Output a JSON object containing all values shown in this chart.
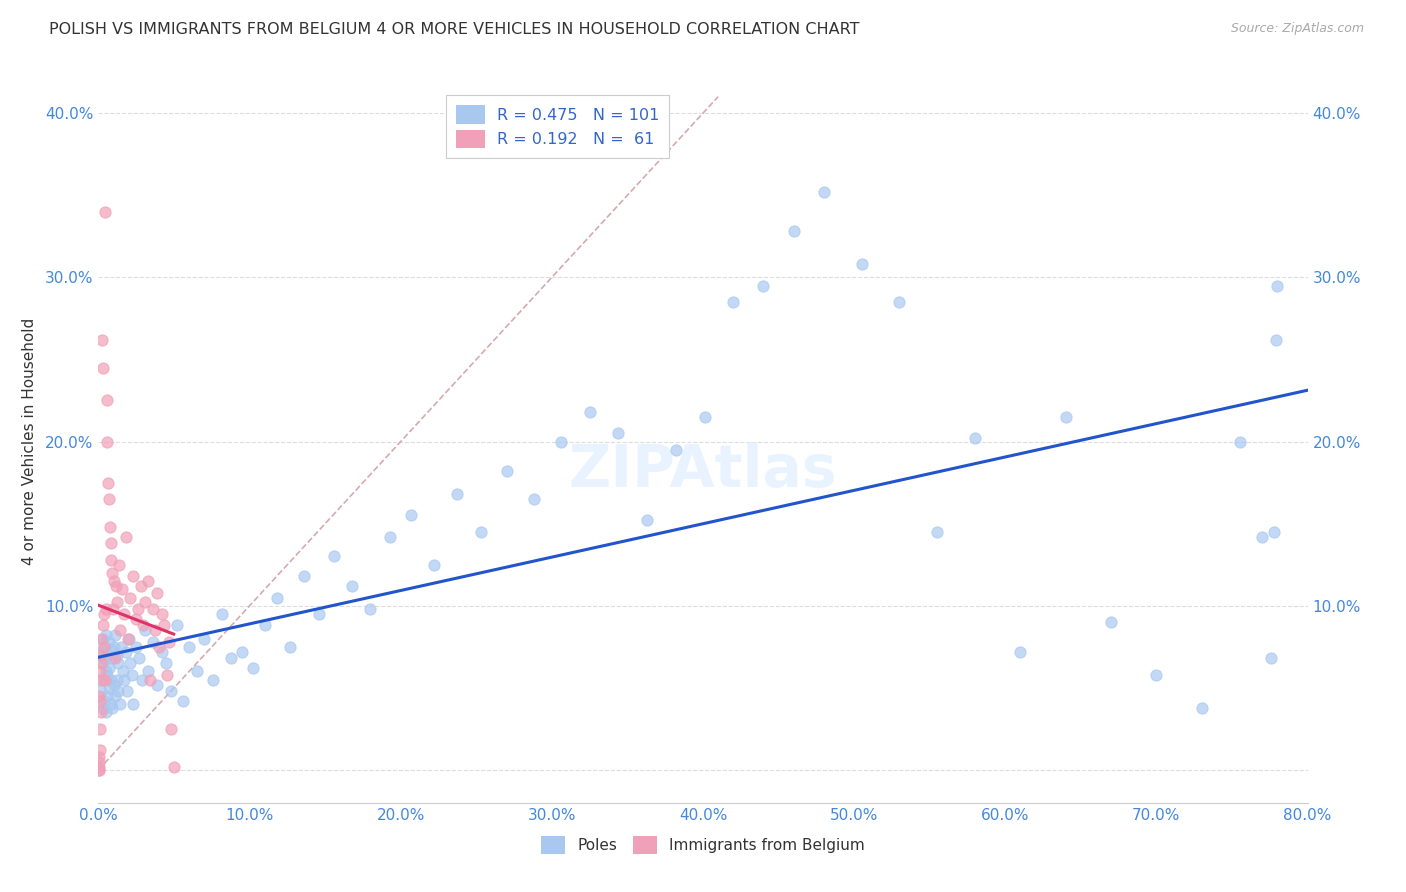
{
  "title": "POLISH VS IMMIGRANTS FROM BELGIUM 4 OR MORE VEHICLES IN HOUSEHOLD CORRELATION CHART",
  "source": "Source: ZipAtlas.com",
  "ylabel": "4 or more Vehicles in Household",
  "xlim": [
    0.0,
    0.8
  ],
  "ylim": [
    -0.02,
    0.42
  ],
  "xticks": [
    0.0,
    0.1,
    0.2,
    0.3,
    0.4,
    0.5,
    0.6,
    0.7,
    0.8
  ],
  "yticks": [
    0.0,
    0.1,
    0.2,
    0.3,
    0.4
  ],
  "ytick_labels": [
    "",
    "10.0%",
    "20.0%",
    "30.0%",
    "40.0%"
  ],
  "xtick_labels": [
    "0.0%",
    "10.0%",
    "20.0%",
    "30.0%",
    "40.0%",
    "50.0%",
    "60.0%",
    "70.0%",
    "80.0%"
  ],
  "poles_color": "#a8c8f0",
  "belgium_color": "#f0a0b8",
  "regression_poles_color": "#2255cc",
  "regression_belgium_color": "#dd3366",
  "diagonal_color": "#d0a0a8",
  "R_poles": 0.475,
  "N_poles": 101,
  "R_belgium": 0.192,
  "N_belgium": 61,
  "legend_poles": "Poles",
  "legend_belgium": "Immigrants from Belgium",
  "poles_x": [
    0.001,
    0.002,
    0.002,
    0.003,
    0.003,
    0.003,
    0.004,
    0.004,
    0.004,
    0.005,
    0.005,
    0.005,
    0.006,
    0.006,
    0.006,
    0.007,
    0.007,
    0.007,
    0.008,
    0.008,
    0.008,
    0.009,
    0.009,
    0.01,
    0.01,
    0.011,
    0.011,
    0.012,
    0.012,
    0.013,
    0.013,
    0.014,
    0.015,
    0.016,
    0.017,
    0.018,
    0.019,
    0.02,
    0.021,
    0.022,
    0.023,
    0.025,
    0.027,
    0.029,
    0.031,
    0.033,
    0.036,
    0.039,
    0.042,
    0.045,
    0.048,
    0.052,
    0.056,
    0.06,
    0.065,
    0.07,
    0.076,
    0.082,
    0.088,
    0.095,
    0.102,
    0.11,
    0.118,
    0.127,
    0.136,
    0.146,
    0.156,
    0.168,
    0.18,
    0.193,
    0.207,
    0.222,
    0.237,
    0.253,
    0.27,
    0.288,
    0.306,
    0.325,
    0.344,
    0.363,
    0.382,
    0.401,
    0.42,
    0.44,
    0.46,
    0.48,
    0.505,
    0.53,
    0.555,
    0.58,
    0.61,
    0.64,
    0.67,
    0.7,
    0.73,
    0.755,
    0.77,
    0.776,
    0.778,
    0.779,
    0.78
  ],
  "poles_y": [
    0.055,
    0.048,
    0.072,
    0.038,
    0.065,
    0.08,
    0.042,
    0.068,
    0.075,
    0.035,
    0.06,
    0.082,
    0.045,
    0.07,
    0.058,
    0.05,
    0.078,
    0.062,
    0.04,
    0.073,
    0.055,
    0.068,
    0.038,
    0.052,
    0.075,
    0.045,
    0.082,
    0.055,
    0.07,
    0.048,
    0.065,
    0.04,
    0.075,
    0.06,
    0.055,
    0.072,
    0.048,
    0.08,
    0.065,
    0.058,
    0.04,
    0.075,
    0.068,
    0.055,
    0.085,
    0.06,
    0.078,
    0.052,
    0.072,
    0.065,
    0.048,
    0.088,
    0.042,
    0.075,
    0.06,
    0.08,
    0.055,
    0.095,
    0.068,
    0.072,
    0.062,
    0.088,
    0.105,
    0.075,
    0.118,
    0.095,
    0.13,
    0.112,
    0.098,
    0.142,
    0.155,
    0.125,
    0.168,
    0.145,
    0.182,
    0.165,
    0.2,
    0.218,
    0.205,
    0.152,
    0.195,
    0.215,
    0.285,
    0.295,
    0.328,
    0.352,
    0.308,
    0.285,
    0.145,
    0.202,
    0.072,
    0.215,
    0.09,
    0.058,
    0.038,
    0.2,
    0.142,
    0.068,
    0.145,
    0.262,
    0.295
  ],
  "belgium_x": [
    0.0002,
    0.0003,
    0.0004,
    0.0005,
    0.0006,
    0.0007,
    0.0008,
    0.0009,
    0.001,
    0.0012,
    0.0014,
    0.0016,
    0.0018,
    0.002,
    0.0022,
    0.0025,
    0.0028,
    0.0031,
    0.0034,
    0.0038,
    0.0042,
    0.0046,
    0.005,
    0.0055,
    0.006,
    0.0065,
    0.007,
    0.0075,
    0.008,
    0.0085,
    0.009,
    0.0095,
    0.01,
    0.0108,
    0.0116,
    0.0124,
    0.0133,
    0.0143,
    0.0154,
    0.0166,
    0.018,
    0.0196,
    0.0212,
    0.023,
    0.0248,
    0.0265,
    0.028,
    0.0295,
    0.031,
    0.0328,
    0.0342,
    0.0358,
    0.0374,
    0.0388,
    0.0402,
    0.0418,
    0.0435,
    0.0452,
    0.0468,
    0.0482,
    0.0498
  ],
  "belgium_y": [
    0.0,
    0.002,
    0.005,
    0.0,
    0.008,
    0.045,
    0.012,
    0.025,
    0.06,
    0.042,
    0.07,
    0.065,
    0.035,
    0.08,
    0.055,
    0.262,
    0.088,
    0.245,
    0.075,
    0.095,
    0.34,
    0.055,
    0.098,
    0.225,
    0.2,
    0.175,
    0.165,
    0.148,
    0.138,
    0.128,
    0.12,
    0.098,
    0.115,
    0.068,
    0.112,
    0.102,
    0.125,
    0.085,
    0.11,
    0.095,
    0.142,
    0.08,
    0.105,
    0.118,
    0.092,
    0.098,
    0.112,
    0.088,
    0.102,
    0.115,
    0.055,
    0.098,
    0.085,
    0.108,
    0.075,
    0.095,
    0.088,
    0.058,
    0.078,
    0.025,
    0.002
  ]
}
